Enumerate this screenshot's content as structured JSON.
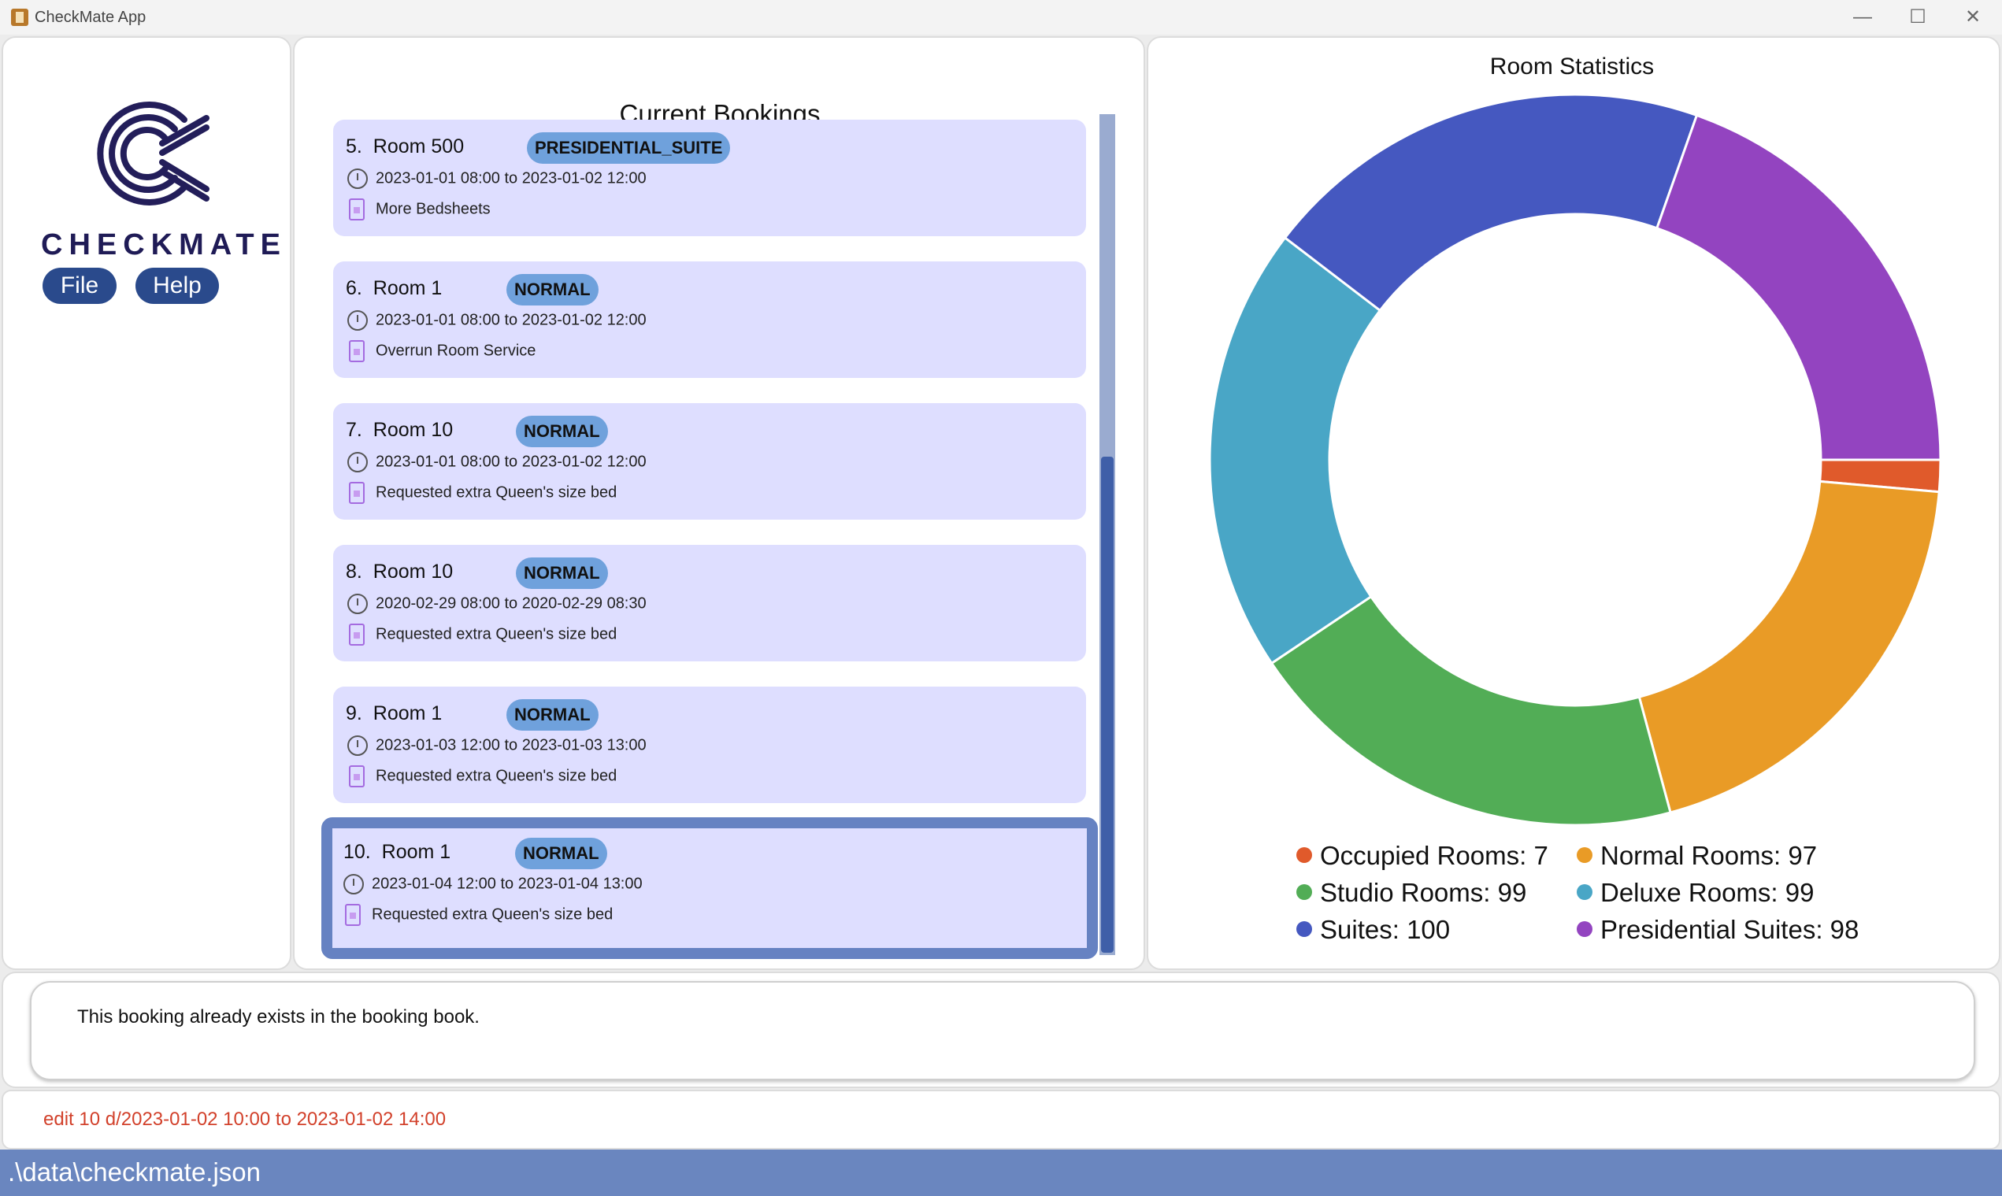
{
  "window": {
    "title": "CheckMate App",
    "minimize": "—",
    "maximize": "☐",
    "close": "✕"
  },
  "sidebar": {
    "logo_text": "CHECKMATE",
    "menu": {
      "file": "File",
      "help": "Help"
    }
  },
  "bookings": {
    "title": "Current Bookings",
    "items": [
      {
        "index": "5.",
        "room": "Room 500",
        "type": "PRESIDENTIAL_SUITE",
        "period": "2023-01-01 08:00 to 2023-01-02 12:00",
        "remark": "More Bedsheets"
      },
      {
        "index": "6.",
        "room": "Room 1",
        "type": "NORMAL",
        "period": "2023-01-01 08:00 to 2023-01-02 12:00",
        "remark": "Overrun Room Service"
      },
      {
        "index": "7.",
        "room": "Room 10",
        "type": "NORMAL",
        "period": "2023-01-01 08:00 to 2023-01-02 12:00",
        "remark": "Requested extra Queen's size bed"
      },
      {
        "index": "8.",
        "room": "Room 10",
        "type": "NORMAL",
        "period": "2020-02-29 08:00 to 2020-02-29 08:30",
        "remark": "Requested extra Queen's size bed"
      },
      {
        "index": "9.",
        "room": "Room 1",
        "type": "NORMAL",
        "period": "2023-01-03 12:00 to 2023-01-03 13:00",
        "remark": "Requested extra Queen's size bed"
      },
      {
        "index": "10.",
        "room": "Room 1",
        "type": "NORMAL",
        "period": "2023-01-04 12:00 to 2023-01-04 13:00",
        "remark": "Requested extra Queen's size bed",
        "selected": true
      }
    ]
  },
  "chart_data": {
    "type": "pie",
    "donut": true,
    "title": "Room Statistics",
    "legend_position": "bottom",
    "slices": [
      {
        "name": "Occupied Rooms",
        "value": 7,
        "color": "#e05a2b"
      },
      {
        "name": "Normal Rooms",
        "value": 97,
        "color": "#e99b26"
      },
      {
        "name": "Studio Rooms",
        "value": 99,
        "color": "#52ad56"
      },
      {
        "name": "Deluxe Rooms",
        "value": 99,
        "color": "#49a6c6"
      },
      {
        "name": "Suites",
        "value": 100,
        "color": "#4558c0"
      },
      {
        "name": "Presidential Suites",
        "value": 98,
        "color": "#9344c0"
      }
    ]
  },
  "feedback": {
    "message": "This booking already exists in the booking book."
  },
  "command": {
    "text": "edit 10 d/2023-01-02 10:00 to 2023-01-02 14:00"
  },
  "status": {
    "file_path": ".\\data\\checkmate.json"
  }
}
